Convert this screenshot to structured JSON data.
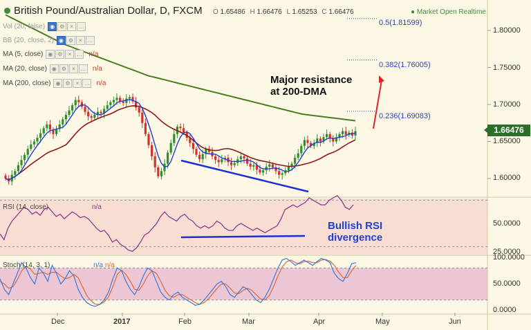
{
  "header": {
    "title": "British Pound/Australian Dollar, D, FXCM",
    "ohlc": [
      {
        "k": "O",
        "v": "1.65486"
      },
      {
        "k": "H",
        "v": "1.66476"
      },
      {
        "k": "L",
        "v": "1.65253"
      },
      {
        "k": "C",
        "v": "1.66476"
      }
    ],
    "realtime": "Market Open Realtime"
  },
  "indicators": [
    {
      "label": "Vol (20, false)",
      "value": "",
      "faded": true
    },
    {
      "label": "BB (20, close, 2)",
      "value": "",
      "faded": true
    },
    {
      "label": "MA (5, close)",
      "value": "n/a",
      "faded": false
    },
    {
      "label": "MA (20, close)",
      "value": "n/a",
      "faded": false
    },
    {
      "label": "MA (200, close)",
      "value": "n/a",
      "faded": false
    }
  ],
  "fib_levels": [
    {
      "label": "0.5(1.81599)",
      "price": 1.81599
    },
    {
      "label": "0.382(1.76005)",
      "price": 1.76005
    },
    {
      "label": "0.236(1.69083)",
      "price": 1.69083
    }
  ],
  "annotations": {
    "resistance": [
      "Major resistance",
      "at 200-DMA"
    ],
    "divergence": [
      "Bullish RSI",
      "divergence"
    ]
  },
  "current_price": "1.66476",
  "rsi_title": "RSI (14, close)",
  "rsi_value": "n/a",
  "stoch_title": "Stoch (14, 3, 1)",
  "stoch_values": [
    "n/a",
    "n/a"
  ],
  "colors": {
    "up": "#2f8f2f",
    "down": "#d0342c",
    "ma5": "#1a3fd6",
    "ma20": "#8b1a1a",
    "ma200": "#4a7d22",
    "rsi": "#8d3b8d",
    "stoch_k": "#3b78d8",
    "stoch_d": "#e0673a",
    "trend": "#1a2fd6",
    "arrow": "#e0202a"
  },
  "chart_data": {
    "type": "candlestick",
    "price_axis": {
      "ticks": [
        "1.80000",
        "1.75000",
        "1.70000",
        "1.65000",
        "1.60000"
      ],
      "ylim": [
        1.585,
        1.84
      ]
    },
    "rsi_axis": {
      "ticks": [
        "50.0000",
        "25.0000"
      ],
      "ylim": [
        20,
        80
      ]
    },
    "stoch_axis": {
      "ticks": [
        "100.0000",
        "50.0000",
        "0.0000"
      ],
      "ylim": [
        0,
        100
      ]
    },
    "x_ticks": [
      {
        "label": "Dec",
        "bold": false
      },
      {
        "label": "2017",
        "bold": true
      },
      {
        "label": "Feb",
        "bold": false
      },
      {
        "label": "Mar",
        "bold": false
      },
      {
        "label": "Apr",
        "bold": false
      },
      {
        "label": "May",
        "bold": false
      },
      {
        "label": "Jun",
        "bold": false
      }
    ],
    "close": [
      1.6,
      1.596,
      1.605,
      1.61,
      1.618,
      1.625,
      1.632,
      1.64,
      1.646,
      1.65,
      1.655,
      1.661,
      1.668,
      1.673,
      1.666,
      1.66,
      1.667,
      1.673,
      1.68,
      1.686,
      1.692,
      1.699,
      1.706,
      1.703,
      1.697,
      1.69,
      1.684,
      1.682,
      1.686,
      1.69,
      1.688,
      1.694,
      1.699,
      1.703,
      1.706,
      1.709,
      1.704,
      1.702,
      1.708,
      1.71,
      1.704,
      1.696,
      1.689,
      1.675,
      1.66,
      1.645,
      1.63,
      1.615,
      1.603,
      1.61,
      1.62,
      1.635,
      1.648,
      1.66,
      1.67,
      1.668,
      1.662,
      1.655,
      1.648,
      1.64,
      1.632,
      1.626,
      1.633,
      1.64,
      1.636,
      1.63,
      1.625,
      1.622,
      1.626,
      1.628,
      1.622,
      1.618,
      1.621,
      1.626,
      1.63,
      1.627,
      1.62,
      1.616,
      1.618,
      1.612,
      1.608,
      1.611,
      1.616,
      1.619,
      1.615,
      1.61,
      1.605,
      1.607,
      1.611,
      1.616,
      1.62,
      1.628,
      1.634,
      1.644,
      1.652,
      1.648,
      1.644,
      1.648,
      1.654,
      1.65,
      1.656,
      1.66,
      1.654,
      1.65,
      1.655,
      1.66,
      1.664,
      1.659,
      1.662,
      1.658,
      1.664
    ],
    "ma200": [
      1.821,
      1.817,
      1.813,
      1.809,
      1.805,
      1.801,
      1.797,
      1.793,
      1.789,
      1.785,
      1.781,
      1.778,
      1.775,
      1.772,
      1.769,
      1.766,
      1.763,
      1.76,
      1.757,
      1.754,
      1.751,
      1.748,
      1.745,
      1.742,
      1.739,
      1.737,
      1.735,
      1.733,
      1.731,
      1.729,
      1.727,
      1.725,
      1.723,
      1.721,
      1.719,
      1.717,
      1.715,
      1.713,
      1.711,
      1.709,
      1.707,
      1.705,
      1.703,
      1.701,
      1.699,
      1.697,
      1.695,
      1.693,
      1.691,
      1.689,
      1.687,
      1.686,
      1.685,
      1.684,
      1.683,
      1.682,
      1.681,
      1.68,
      1.679,
      1.678
    ],
    "rsi": [
      41,
      36,
      46,
      52,
      56,
      60,
      64,
      62,
      58,
      60,
      57,
      62,
      64,
      60,
      56,
      58,
      54,
      57,
      60,
      58,
      55,
      56,
      54,
      50,
      46,
      43,
      44,
      40,
      34,
      36,
      32,
      30,
      27,
      26,
      29,
      34,
      40,
      42,
      46,
      50,
      56,
      60,
      56,
      54,
      52,
      56,
      58,
      54,
      52,
      48,
      46,
      48,
      46,
      48,
      52,
      50,
      46,
      44,
      44,
      48,
      50,
      48,
      46,
      44,
      46,
      44,
      42,
      44,
      46,
      48,
      54,
      62,
      64,
      66,
      64,
      66,
      68,
      72,
      70,
      68,
      66,
      66,
      70,
      72,
      74,
      70,
      64,
      62,
      66
    ],
    "stoch_k": [
      60,
      40,
      30,
      50,
      70,
      90,
      80,
      62,
      50,
      80,
      70,
      55,
      85,
      70,
      50,
      60,
      75,
      65,
      40,
      25,
      15,
      10,
      8,
      12,
      20,
      35,
      60,
      80,
      75,
      55,
      40,
      30,
      45,
      65,
      80,
      75,
      55,
      35,
      25,
      20,
      30,
      35,
      25,
      20,
      15,
      10,
      12,
      20,
      30,
      40,
      50,
      55,
      45,
      30,
      25,
      35,
      45,
      40,
      30,
      20,
      15,
      25,
      40,
      60,
      80,
      95,
      98,
      92,
      85,
      90,
      95,
      90,
      85,
      92,
      98,
      95,
      90,
      70,
      60,
      55,
      70,
      88,
      90
    ],
    "stoch_d": [
      55,
      50,
      42,
      45,
      58,
      75,
      83,
      78,
      68,
      70,
      72,
      68,
      72,
      72,
      65,
      60,
      62,
      68,
      62,
      45,
      28,
      18,
      12,
      12,
      16,
      26,
      45,
      68,
      76,
      68,
      55,
      40,
      38,
      50,
      65,
      75,
      70,
      55,
      38,
      28,
      25,
      30,
      30,
      25,
      20,
      15,
      12,
      15,
      22,
      32,
      42,
      50,
      50,
      42,
      33,
      32,
      38,
      42,
      38,
      30,
      22,
      20,
      28,
      45,
      65,
      82,
      92,
      95,
      90,
      88,
      92,
      93,
      90,
      90,
      95,
      96,
      93,
      85,
      72,
      62,
      62,
      75,
      85
    ]
  }
}
